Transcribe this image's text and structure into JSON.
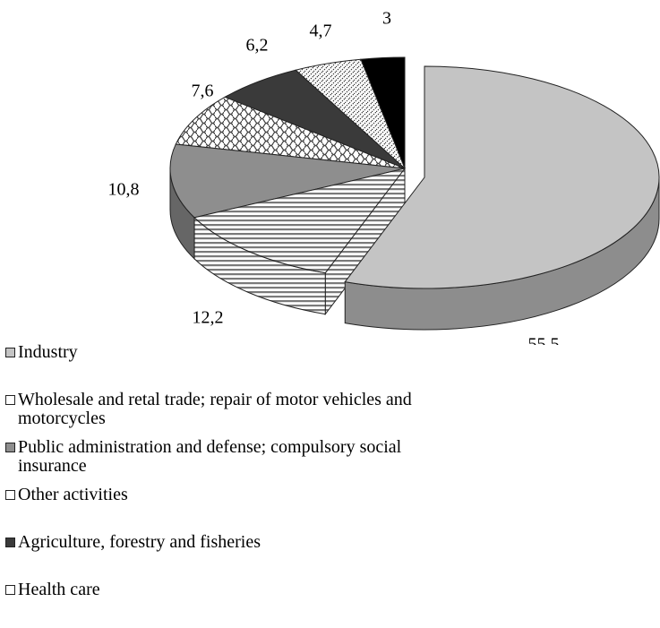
{
  "chart_data": {
    "type": "pie",
    "categories": [
      "Industry",
      "Wholesale and retal trade; repair of motor vehicles and motorcycles",
      "Public administration and defense; compulsory social insurance",
      "Other activities",
      "Agriculture, forestry and fisheries",
      "Health care",
      null
    ],
    "values": [
      55.5,
      12.2,
      10.8,
      7.6,
      6.2,
      4.7,
      3
    ],
    "value_labels": [
      "55,5",
      "12,2",
      "10,8",
      "7,6",
      "6,2",
      "4,7",
      "3"
    ],
    "colors": [
      "#c4c4c4",
      "#ffffff",
      "#8e8e8e",
      "#ffffff",
      "#3a3a3a",
      "#ffffff",
      "#000000"
    ],
    "legend": "bottom-left"
  }
}
